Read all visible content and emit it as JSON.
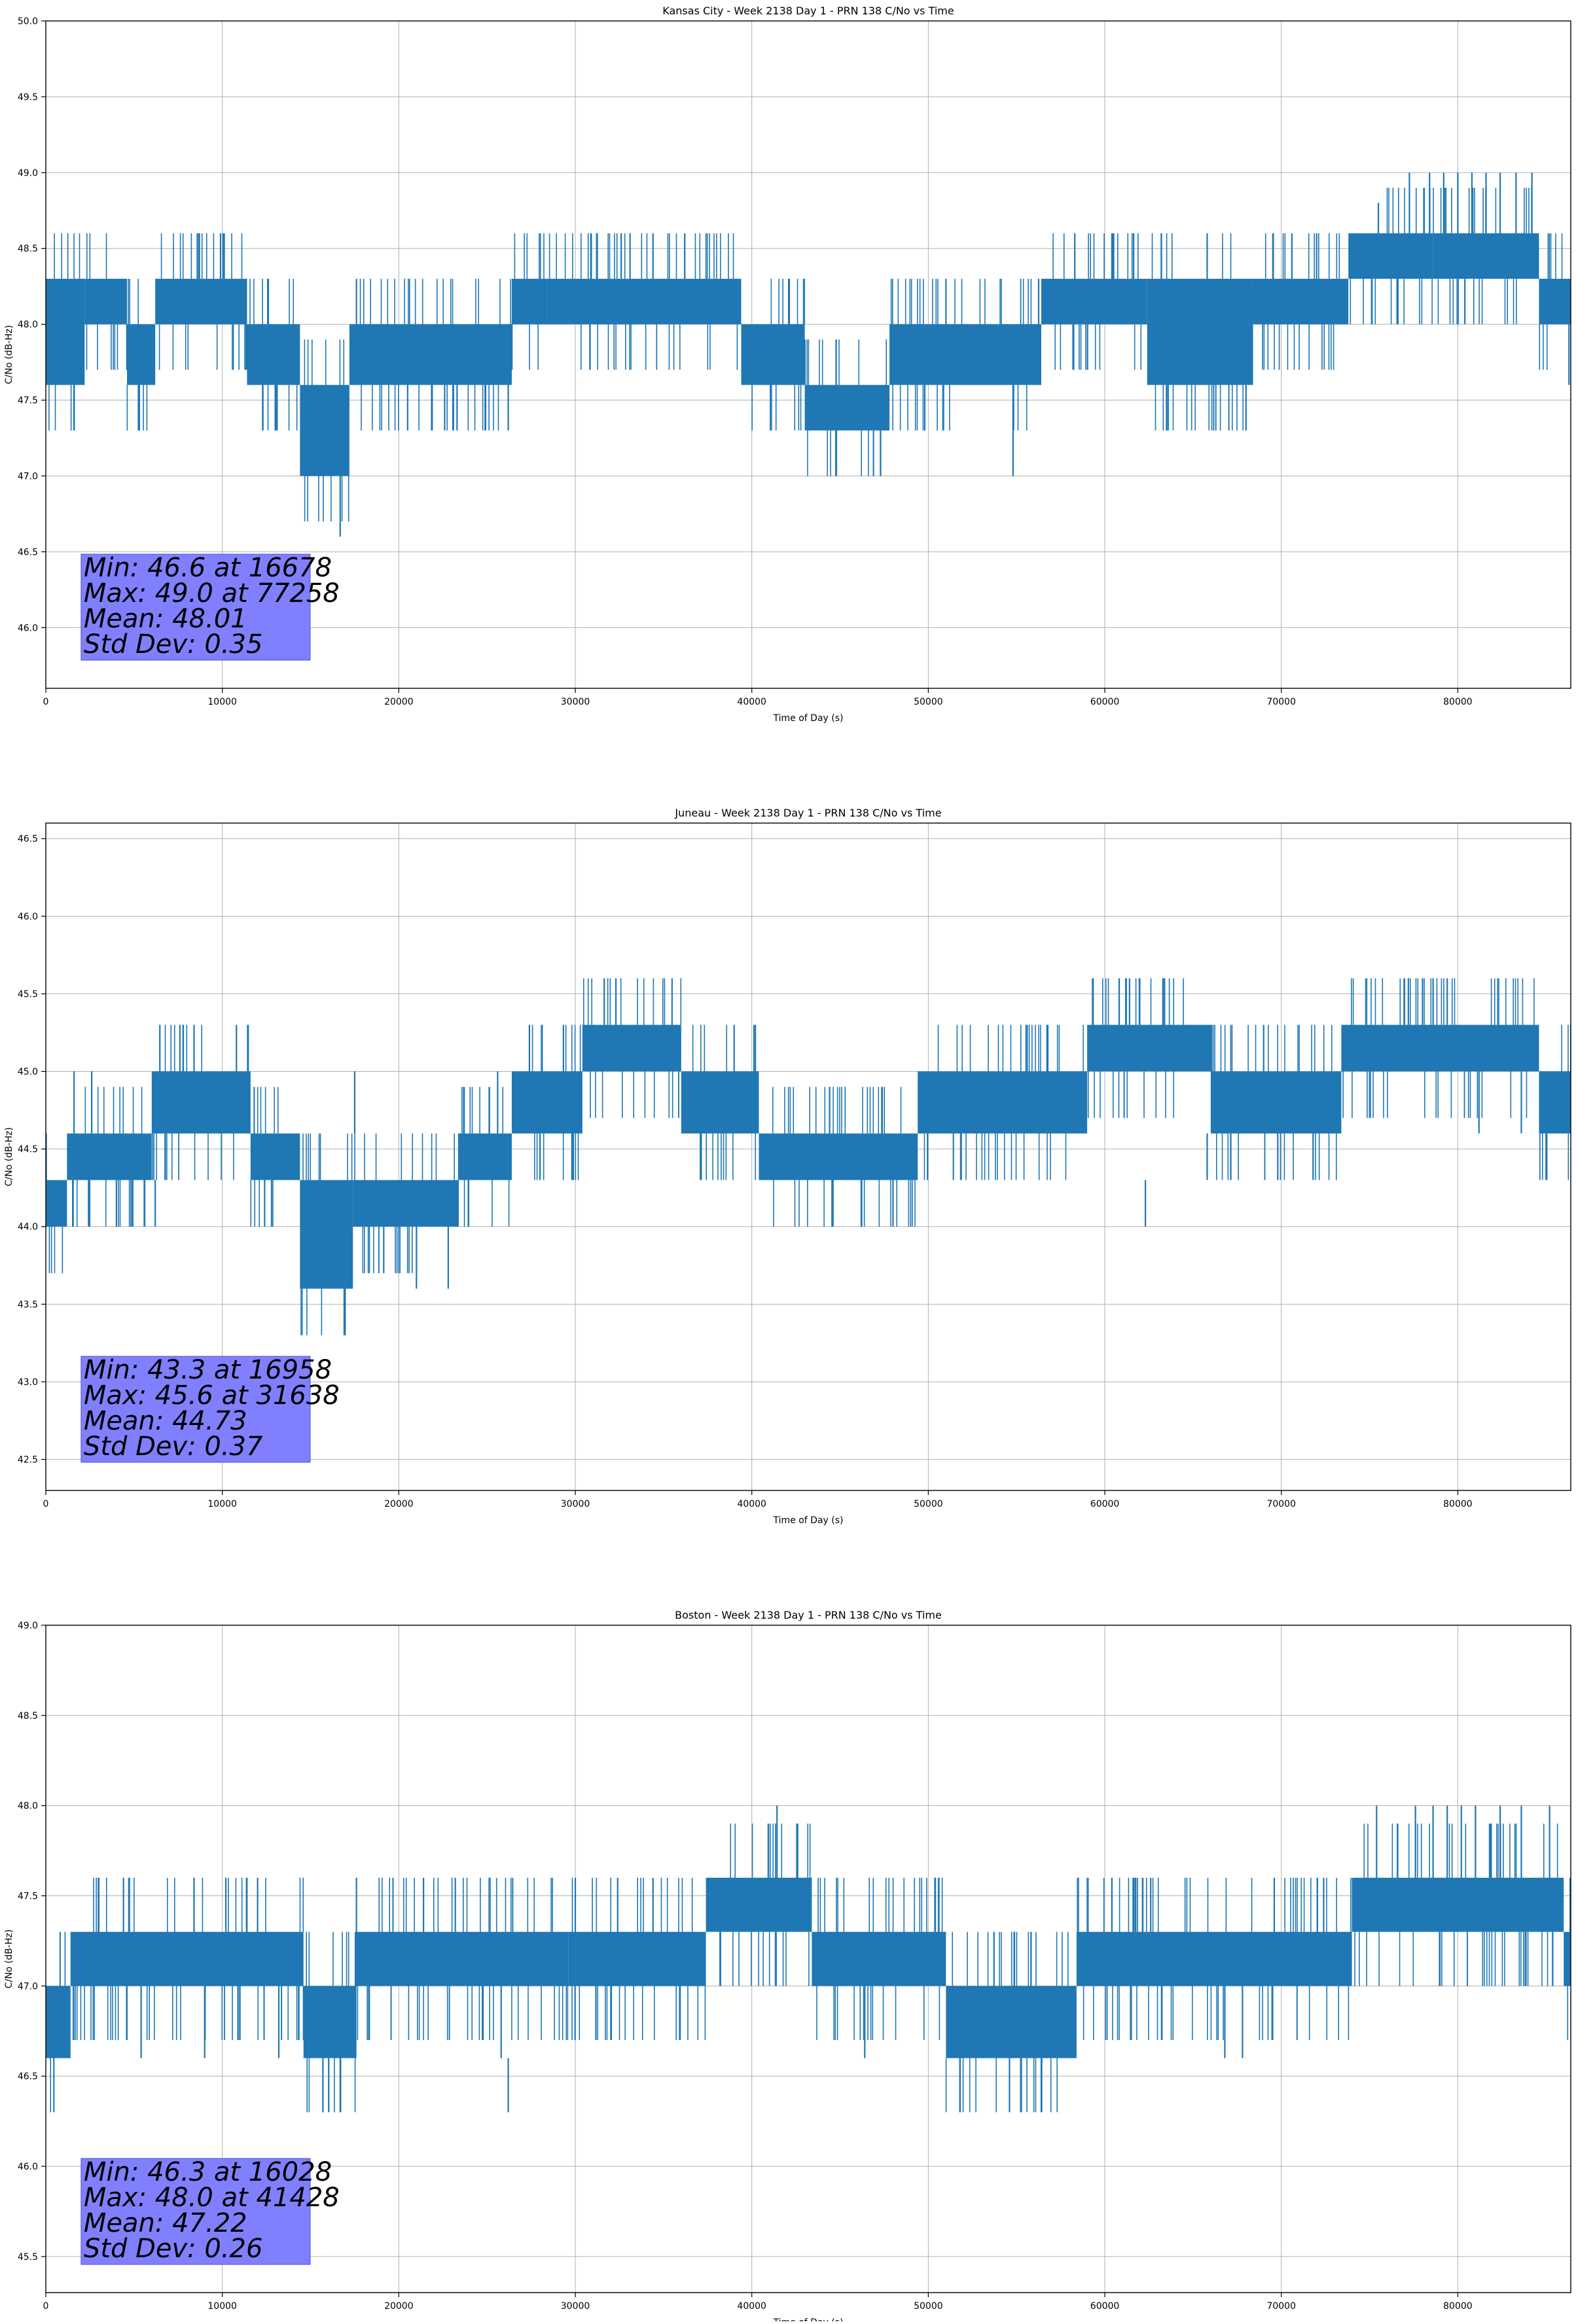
{
  "colors": {
    "series": "#1f77b4",
    "stats_box": "#8080ff",
    "grid": "#b0b0b0",
    "axes": "#000000"
  },
  "chart_data": [
    {
      "type": "line",
      "title": "Kansas City - Week 2138 Day 1 - PRN 138 C/No vs Time",
      "xlabel": "Time of Day (s)",
      "ylabel": "C/No (dB-Hz)",
      "xlim": [
        0,
        86400
      ],
      "ylim": [
        45.6,
        50.0
      ],
      "xticks": [
        0,
        10000,
        20000,
        30000,
        40000,
        50000,
        60000,
        70000,
        80000
      ],
      "yticks": [
        46.0,
        46.5,
        47.0,
        47.5,
        48.0,
        48.5,
        49.0,
        49.5,
        50.0
      ],
      "grid": true,
      "stats": [
        "Min: 46.6 at 16678",
        "Max: 49.0 at 77258",
        "Mean: 48.01",
        "Std Dev: 0.35"
      ],
      "segments": [
        {
          "x0": 0,
          "x1": 2200,
          "lo": 47.6,
          "hi": 48.3
        },
        {
          "x0": 2200,
          "x1": 4600,
          "lo": 48.0,
          "hi": 48.3
        },
        {
          "x0": 4600,
          "x1": 6200,
          "lo": 47.6,
          "hi": 48.0
        },
        {
          "x0": 6200,
          "x1": 11400,
          "lo": 48.0,
          "hi": 48.3
        },
        {
          "x0": 11400,
          "x1": 14400,
          "lo": 47.6,
          "hi": 48.0
        },
        {
          "x0": 14400,
          "x1": 17200,
          "lo": 47.0,
          "hi": 47.6
        },
        {
          "x0": 17200,
          "x1": 19800,
          "lo": 47.6,
          "hi": 48.0
        },
        {
          "x0": 19800,
          "x1": 26400,
          "lo": 47.6,
          "hi": 48.0
        },
        {
          "x0": 26400,
          "x1": 28400,
          "lo": 48.0,
          "hi": 48.3
        },
        {
          "x0": 28400,
          "x1": 39400,
          "lo": 48.0,
          "hi": 48.3
        },
        {
          "x0": 39400,
          "x1": 43000,
          "lo": 47.6,
          "hi": 48.0
        },
        {
          "x0": 43000,
          "x1": 47800,
          "lo": 47.3,
          "hi": 47.6
        },
        {
          "x0": 47800,
          "x1": 56400,
          "lo": 47.6,
          "hi": 48.0
        },
        {
          "x0": 56400,
          "x1": 62400,
          "lo": 48.0,
          "hi": 48.3
        },
        {
          "x0": 62400,
          "x1": 68400,
          "lo": 47.6,
          "hi": 48.3
        },
        {
          "x0": 68400,
          "x1": 73800,
          "lo": 48.0,
          "hi": 48.3
        },
        {
          "x0": 73800,
          "x1": 78600,
          "lo": 48.3,
          "hi": 48.6
        },
        {
          "x0": 78600,
          "x1": 84600,
          "lo": 48.3,
          "hi": 48.6
        },
        {
          "x0": 84600,
          "x1": 86400,
          "lo": 48.0,
          "hi": 48.3
        }
      ],
      "spikes": [
        {
          "x": 8700,
          "lo": 48.3,
          "hi": 48.6
        },
        {
          "x": 9900,
          "lo": 48.3,
          "hi": 48.6
        },
        {
          "x": 10050,
          "lo": 48.3,
          "hi": 48.6
        },
        {
          "x": 5300,
          "lo": 47.3,
          "hi": 47.6
        },
        {
          "x": 12300,
          "lo": 47.3,
          "hi": 47.6
        },
        {
          "x": 13100,
          "lo": 47.3,
          "hi": 47.6
        },
        {
          "x": 16678,
          "lo": 46.6,
          "hi": 47.0
        },
        {
          "x": 15600,
          "lo": 47.0,
          "hi": 47.3
        },
        {
          "x": 17600,
          "lo": 48.0,
          "hi": 48.3
        },
        {
          "x": 20500,
          "lo": 47.3,
          "hi": 47.6
        },
        {
          "x": 23300,
          "lo": 47.3,
          "hi": 47.6
        },
        {
          "x": 26200,
          "lo": 47.3,
          "hi": 47.6
        },
        {
          "x": 32600,
          "lo": 48.3,
          "hi": 48.6
        },
        {
          "x": 33100,
          "lo": 48.3,
          "hi": 48.6
        },
        {
          "x": 34400,
          "lo": 48.3,
          "hi": 48.6
        },
        {
          "x": 36200,
          "lo": 48.3,
          "hi": 48.6
        },
        {
          "x": 49800,
          "lo": 47.3,
          "hi": 47.6
        },
        {
          "x": 54800,
          "lo": 47.0,
          "hi": 47.6
        },
        {
          "x": 51000,
          "lo": 48.0,
          "hi": 48.3
        },
        {
          "x": 58300,
          "lo": 48.3,
          "hi": 48.6
        },
        {
          "x": 60500,
          "lo": 48.3,
          "hi": 48.6
        },
        {
          "x": 63200,
          "lo": 48.3,
          "hi": 48.6
        },
        {
          "x": 65800,
          "lo": 48.3,
          "hi": 48.6
        },
        {
          "x": 68000,
          "lo": 47.3,
          "hi": 47.6
        },
        {
          "x": 70600,
          "lo": 48.3,
          "hi": 48.6
        },
        {
          "x": 72000,
          "lo": 48.3,
          "hi": 48.6
        },
        {
          "x": 75500,
          "lo": 48.6,
          "hi": 48.8
        },
        {
          "x": 77258,
          "lo": 48.6,
          "hi": 49.0
        },
        {
          "x": 78400,
          "lo": 48.6,
          "hi": 49.0
        },
        {
          "x": 79200,
          "lo": 48.6,
          "hi": 49.0
        },
        {
          "x": 80000,
          "lo": 48.6,
          "hi": 49.0
        },
        {
          "x": 80800,
          "lo": 48.6,
          "hi": 49.0
        },
        {
          "x": 81600,
          "lo": 48.6,
          "hi": 49.0
        },
        {
          "x": 82400,
          "lo": 48.6,
          "hi": 49.0
        },
        {
          "x": 83300,
          "lo": 48.6,
          "hi": 49.0
        },
        {
          "x": 84200,
          "lo": 48.6,
          "hi": 49.0
        },
        {
          "x": 80400,
          "lo": 48.0,
          "hi": 48.3
        },
        {
          "x": 84900,
          "lo": 48.0,
          "hi": 48.3
        },
        {
          "x": 86300,
          "lo": 47.6,
          "hi": 48.0
        }
      ]
    },
    {
      "type": "line",
      "title": "Juneau - Week 2138 Day 1 - PRN 138 C/No vs Time",
      "xlabel": "Time of Day (s)",
      "ylabel": "C/No (dB-Hz)",
      "xlim": [
        0,
        86400
      ],
      "ylim": [
        42.3,
        46.6
      ],
      "xticks": [
        0,
        10000,
        20000,
        30000,
        40000,
        50000,
        60000,
        70000,
        80000
      ],
      "yticks": [
        42.5,
        43.0,
        43.5,
        44.0,
        44.5,
        45.0,
        45.5,
        46.0,
        46.5
      ],
      "grid": true,
      "stats": [
        "Min: 43.3 at 16958",
        "Max: 45.6 at 31638",
        "Mean: 44.73",
        "Std Dev: 0.37"
      ],
      "segments": [
        {
          "x0": 0,
          "x1": 1200,
          "lo": 44.0,
          "hi": 44.3
        },
        {
          "x0": 1200,
          "x1": 6000,
          "lo": 44.3,
          "hi": 44.6
        },
        {
          "x0": 6000,
          "x1": 11600,
          "lo": 44.6,
          "hi": 45.0
        },
        {
          "x0": 11600,
          "x1": 14400,
          "lo": 44.3,
          "hi": 44.6
        },
        {
          "x0": 14400,
          "x1": 17400,
          "lo": 43.6,
          "hi": 44.3
        },
        {
          "x0": 17400,
          "x1": 23400,
          "lo": 44.0,
          "hi": 44.3
        },
        {
          "x0": 23400,
          "x1": 26400,
          "lo": 44.3,
          "hi": 44.6
        },
        {
          "x0": 26400,
          "x1": 30400,
          "lo": 44.6,
          "hi": 45.0
        },
        {
          "x0": 30400,
          "x1": 36000,
          "lo": 45.0,
          "hi": 45.3
        },
        {
          "x0": 36000,
          "x1": 40400,
          "lo": 44.6,
          "hi": 45.0
        },
        {
          "x0": 40400,
          "x1": 49400,
          "lo": 44.3,
          "hi": 44.6
        },
        {
          "x0": 49400,
          "x1": 59000,
          "lo": 44.6,
          "hi": 45.0
        },
        {
          "x0": 59000,
          "x1": 66000,
          "lo": 45.0,
          "hi": 45.3
        },
        {
          "x0": 66000,
          "x1": 73400,
          "lo": 44.6,
          "hi": 45.0
        },
        {
          "x0": 73400,
          "x1": 84600,
          "lo": 45.0,
          "hi": 45.3
        },
        {
          "x0": 84600,
          "x1": 86400,
          "lo": 44.6,
          "hi": 45.0
        }
      ],
      "spikes": [
        {
          "x": 1600,
          "lo": 44.6,
          "hi": 45.0
        },
        {
          "x": 2600,
          "lo": 44.6,
          "hi": 45.0
        },
        {
          "x": 4000,
          "lo": 44.0,
          "hi": 44.3
        },
        {
          "x": 5600,
          "lo": 44.0,
          "hi": 44.3
        },
        {
          "x": 6200,
          "lo": 44.0,
          "hi": 44.3
        },
        {
          "x": 7600,
          "lo": 45.0,
          "hi": 45.3
        },
        {
          "x": 8400,
          "lo": 45.0,
          "hi": 45.3
        },
        {
          "x": 10800,
          "lo": 45.0,
          "hi": 45.3
        },
        {
          "x": 12400,
          "lo": 44.0,
          "hi": 44.3
        },
        {
          "x": 16958,
          "lo": 43.3,
          "hi": 43.6
        },
        {
          "x": 17500,
          "lo": 44.6,
          "hi": 45.0
        },
        {
          "x": 21000,
          "lo": 43.6,
          "hi": 44.0
        },
        {
          "x": 22800,
          "lo": 43.6,
          "hi": 44.0
        },
        {
          "x": 25600,
          "lo": 44.6,
          "hi": 45.0
        },
        {
          "x": 27400,
          "lo": 45.0,
          "hi": 45.3
        },
        {
          "x": 31638,
          "lo": 45.3,
          "hi": 45.6
        },
        {
          "x": 32300,
          "lo": 45.3,
          "hi": 45.6
        },
        {
          "x": 28000,
          "lo": 44.3,
          "hi": 44.6
        },
        {
          "x": 44600,
          "lo": 44.0,
          "hi": 44.3
        },
        {
          "x": 46200,
          "lo": 44.0,
          "hi": 44.3
        },
        {
          "x": 48000,
          "lo": 44.0,
          "hi": 44.3
        },
        {
          "x": 55600,
          "lo": 45.0,
          "hi": 45.3
        },
        {
          "x": 61400,
          "lo": 45.3,
          "hi": 45.6
        },
        {
          "x": 63300,
          "lo": 45.3,
          "hi": 45.6
        },
        {
          "x": 62300,
          "lo": 44.0,
          "hi": 44.3
        },
        {
          "x": 65800,
          "lo": 44.3,
          "hi": 44.6
        },
        {
          "x": 69800,
          "lo": 44.3,
          "hi": 44.6
        },
        {
          "x": 71800,
          "lo": 44.3,
          "hi": 44.6
        },
        {
          "x": 69000,
          "lo": 45.0,
          "hi": 45.3
        },
        {
          "x": 77200,
          "lo": 45.3,
          "hi": 45.6
        },
        {
          "x": 78000,
          "lo": 45.3,
          "hi": 45.6
        },
        {
          "x": 78600,
          "lo": 45.3,
          "hi": 45.6
        },
        {
          "x": 79400,
          "lo": 45.3,
          "hi": 45.6
        },
        {
          "x": 81200,
          "lo": 44.6,
          "hi": 45.0
        },
        {
          "x": 83600,
          "lo": 44.6,
          "hi": 45.0
        },
        {
          "x": 85000,
          "lo": 44.3,
          "hi": 44.6
        }
      ]
    },
    {
      "type": "line",
      "title": "Boston - Week 2138 Day 1 - PRN 138 C/No vs Time",
      "xlabel": "Time of Day (s)",
      "ylabel": "C/No (dB-Hz)",
      "xlim": [
        0,
        86400
      ],
      "ylim": [
        45.3,
        49.0
      ],
      "xticks": [
        0,
        10000,
        20000,
        30000,
        40000,
        50000,
        60000,
        70000,
        80000
      ],
      "yticks": [
        45.5,
        46.0,
        46.5,
        47.0,
        47.5,
        48.0,
        48.5,
        49.0
      ],
      "grid": true,
      "stats": [
        "Min: 46.3 at 16028",
        "Max: 48.0 at 41428",
        "Mean: 47.22",
        "Std Dev: 0.26"
      ],
      "segments": [
        {
          "x0": 0,
          "x1": 1400,
          "lo": 46.6,
          "hi": 47.0
        },
        {
          "x0": 1400,
          "x1": 14600,
          "lo": 47.0,
          "hi": 47.3
        },
        {
          "x0": 14600,
          "x1": 17600,
          "lo": 46.6,
          "hi": 47.0
        },
        {
          "x0": 17600,
          "x1": 29600,
          "lo": 47.0,
          "hi": 47.3
        },
        {
          "x0": 29600,
          "x1": 37400,
          "lo": 47.0,
          "hi": 47.3
        },
        {
          "x0": 37400,
          "x1": 43400,
          "lo": 47.3,
          "hi": 47.6
        },
        {
          "x0": 43400,
          "x1": 51000,
          "lo": 47.0,
          "hi": 47.3
        },
        {
          "x0": 51000,
          "x1": 58400,
          "lo": 46.6,
          "hi": 47.0
        },
        {
          "x0": 58400,
          "x1": 74000,
          "lo": 47.0,
          "hi": 47.3
        },
        {
          "x0": 74000,
          "x1": 86000,
          "lo": 47.3,
          "hi": 47.6
        },
        {
          "x0": 86000,
          "x1": 86400,
          "lo": 47.0,
          "hi": 47.3
        }
      ],
      "spikes": [
        {
          "x": 3000,
          "lo": 47.3,
          "hi": 47.6
        },
        {
          "x": 4400,
          "lo": 47.3,
          "hi": 47.6
        },
        {
          "x": 5400,
          "lo": 46.6,
          "hi": 47.0
        },
        {
          "x": 8400,
          "lo": 47.3,
          "hi": 47.6
        },
        {
          "x": 9000,
          "lo": 46.6,
          "hi": 47.0
        },
        {
          "x": 10200,
          "lo": 47.3,
          "hi": 47.6
        },
        {
          "x": 12000,
          "lo": 47.3,
          "hi": 47.6
        },
        {
          "x": 13200,
          "lo": 46.6,
          "hi": 47.0
        },
        {
          "x": 16028,
          "lo": 46.3,
          "hi": 46.6
        },
        {
          "x": 15700,
          "lo": 46.3,
          "hi": 46.6
        },
        {
          "x": 16700,
          "lo": 46.3,
          "hi": 46.6
        },
        {
          "x": 17600,
          "lo": 47.3,
          "hi": 47.6
        },
        {
          "x": 21400,
          "lo": 47.3,
          "hi": 47.6
        },
        {
          "x": 23200,
          "lo": 47.3,
          "hi": 47.6
        },
        {
          "x": 26200,
          "lo": 46.3,
          "hi": 46.6
        },
        {
          "x": 25800,
          "lo": 46.6,
          "hi": 47.0
        },
        {
          "x": 30000,
          "lo": 47.3,
          "hi": 47.6
        },
        {
          "x": 32400,
          "lo": 47.3,
          "hi": 47.6
        },
        {
          "x": 34400,
          "lo": 47.3,
          "hi": 47.6
        },
        {
          "x": 41428,
          "lo": 47.6,
          "hi": 48.0
        },
        {
          "x": 38200,
          "lo": 47.0,
          "hi": 47.3
        },
        {
          "x": 46400,
          "lo": 46.6,
          "hi": 47.0
        },
        {
          "x": 51800,
          "lo": 46.3,
          "hi": 46.6
        },
        {
          "x": 54600,
          "lo": 46.3,
          "hi": 46.6
        },
        {
          "x": 56400,
          "lo": 46.3,
          "hi": 46.6
        },
        {
          "x": 60400,
          "lo": 47.3,
          "hi": 47.6
        },
        {
          "x": 62600,
          "lo": 47.3,
          "hi": 47.6
        },
        {
          "x": 66800,
          "lo": 46.6,
          "hi": 47.0
        },
        {
          "x": 67800,
          "lo": 46.6,
          "hi": 47.0
        },
        {
          "x": 69600,
          "lo": 47.3,
          "hi": 47.6
        },
        {
          "x": 72400,
          "lo": 47.3,
          "hi": 47.6
        },
        {
          "x": 75400,
          "lo": 47.6,
          "hi": 48.0
        },
        {
          "x": 77600,
          "lo": 47.6,
          "hi": 48.0
        },
        {
          "x": 78600,
          "lo": 47.6,
          "hi": 48.0
        },
        {
          "x": 79400,
          "lo": 47.6,
          "hi": 48.0
        },
        {
          "x": 80200,
          "lo": 47.6,
          "hi": 48.0
        },
        {
          "x": 81000,
          "lo": 47.6,
          "hi": 48.0
        },
        {
          "x": 82400,
          "lo": 47.6,
          "hi": 48.0
        },
        {
          "x": 83600,
          "lo": 47.6,
          "hi": 48.0
        },
        {
          "x": 85200,
          "lo": 47.6,
          "hi": 48.0
        }
      ]
    }
  ]
}
